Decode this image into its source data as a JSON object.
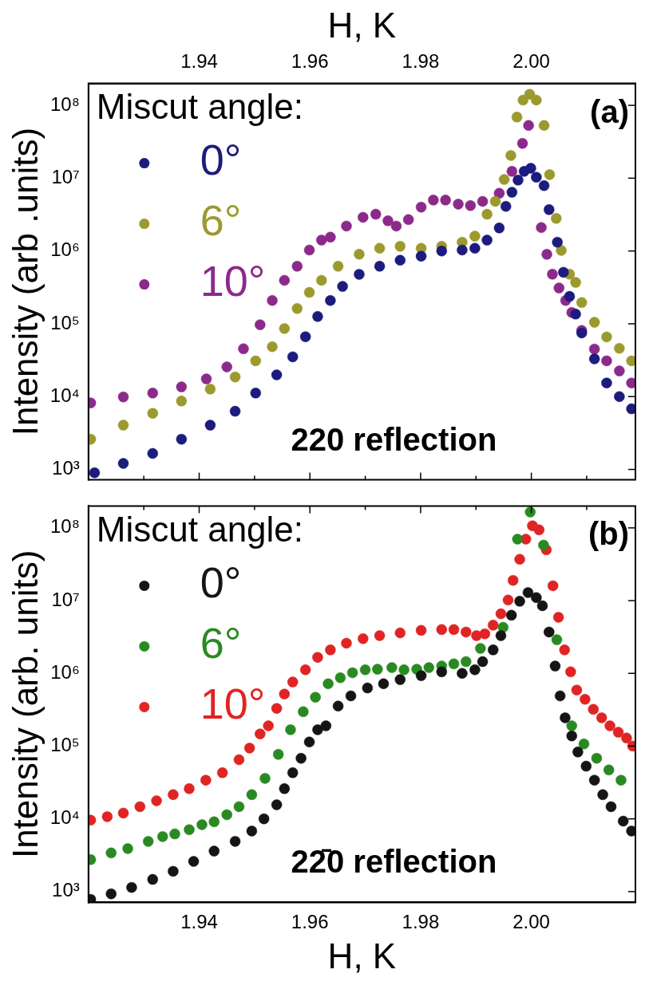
{
  "chart_data": [
    {
      "type": "scatter",
      "xlabel": "H, K",
      "ylabel": "Intensity (arb .units)",
      "legend_title": "Miscut angle:",
      "legend": "top left",
      "marker": "circle",
      "log": "y",
      "xlim": [
        1.92,
        2.0188
      ],
      "xticks": [
        {
          "value": 1.93,
          "label": null
        },
        {
          "value": 1.94,
          "label": "1.94"
        },
        {
          "value": 1.95,
          "label": null
        },
        {
          "value": 1.96,
          "label": "1.96"
        },
        {
          "value": 1.97,
          "label": null
        },
        {
          "value": 1.98,
          "label": "1.98"
        },
        {
          "value": 1.99,
          "label": null
        },
        {
          "value": 2.0,
          "label": "2.00"
        },
        {
          "value": 2.01,
          "label": null
        }
      ],
      "ylim": [
        720,
        200000000
      ],
      "yticks": [
        {
          "value": 1000,
          "label": "10³"
        },
        {
          "value": 10000,
          "label": "10⁴"
        },
        {
          "value": 100000,
          "label": "10⁵"
        },
        {
          "value": 1000000,
          "label": "10⁶"
        },
        {
          "value": 10000000,
          "label": "10⁷"
        },
        {
          "value": 100000000,
          "label": "10⁸"
        }
      ],
      "annotations": [
        "(a)",
        "220 reflection"
      ],
      "series": [
        {
          "name": "0°",
          "color": "#1c1c7e",
          "x": [
            1.9211,
            1.9263,
            1.9316,
            1.9368,
            1.942,
            1.9465,
            1.9502,
            1.954,
            1.9569,
            1.9592,
            1.9614,
            1.9637,
            1.9659,
            1.9689,
            1.9726,
            1.9763,
            1.9801,
            1.9838,
            1.9875,
            1.9898,
            1.992,
            1.9942,
            1.9954,
            1.9965,
            1.9976,
            1.9987,
            1.9999,
            2.0009,
            2.0023,
            2.0032,
            2.0047,
            2.0058,
            2.0069,
            2.008,
            2.0091,
            2.0114,
            2.0136,
            2.0159,
            2.0181
          ],
          "values": [
            900,
            1210,
            1660,
            2600,
            4050,
            6300,
            11200,
            19900,
            35200,
            66500,
            126000,
            209000,
            326000,
            478000,
            617000,
            747000,
            848000,
            1000000,
            1030000,
            1090000,
            1410000,
            2070000,
            4100000,
            6400000,
            9400000,
            12400000,
            13700000,
            10300000,
            7900000,
            3700000,
            1320000,
            510000,
            238000,
            136000,
            75000,
            33000,
            15400,
            10000,
            6800
          ]
        },
        {
          "name": "6°",
          "color": "#9c9a2e",
          "x": [
            1.9204,
            1.9263,
            1.9316,
            1.9368,
            1.942,
            1.9465,
            1.9502,
            1.9532,
            1.9554,
            1.9577,
            1.9599,
            1.9621,
            1.9651,
            1.9689,
            1.9726,
            1.9763,
            1.9801,
            1.9838,
            1.9875,
            1.9898,
            1.992,
            1.9935,
            1.9951,
            1.9963,
            1.9974,
            1.9985,
            1.9997,
            2.0009,
            2.0023,
            2.0033,
            2.0045,
            2.0054,
            2.0069,
            2.008,
            2.0091,
            2.0114,
            2.0136,
            2.0159,
            2.0181
          ],
          "values": [
            2600,
            4050,
            5900,
            8700,
            12700,
            18600,
            31000,
            48400,
            86000,
            162000,
            270000,
            395000,
            617000,
            903000,
            1090000,
            1160000,
            1090000,
            1160000,
            1320000,
            1600000,
            3200000,
            4800000,
            9600000,
            20500000,
            69000000,
            118000000,
            142000000,
            118000000,
            53000000,
            11200000,
            2800000,
            1020000,
            480000,
            370000,
            196000,
            105000,
            66000,
            46000,
            31000
          ]
        },
        {
          "name": "10°",
          "color": "#8c2a8c",
          "x": [
            1.9204,
            1.9263,
            1.9316,
            1.9368,
            1.9413,
            1.945,
            1.948,
            1.951,
            1.9532,
            1.9554,
            1.9577,
            1.9599,
            1.9621,
            1.9637,
            1.9666,
            1.9696,
            1.9719,
            1.9741,
            1.9756,
            1.9778,
            1.9801,
            1.9823,
            1.9845,
            1.9868,
            1.989,
            1.9912,
            1.9942,
            1.9965,
            1.9984,
            1.9995,
            2.0018,
            2.0028,
            2.0038,
            2.005,
            2.0062,
            2.0073,
            2.0091,
            2.0114,
            2.0136,
            2.0159,
            2.0181
          ],
          "values": [
            8200,
            9900,
            11200,
            13600,
            17500,
            25600,
            45400,
            97000,
            209000,
            395000,
            617000,
            1030000,
            1410000,
            1550000,
            2200000,
            2900000,
            3200000,
            2600000,
            2200000,
            2700000,
            4000000,
            5000000,
            5000000,
            4400000,
            4200000,
            4800000,
            6200000,
            12400000,
            30000000,
            53000000,
            2100000,
            900000,
            480000,
            310000,
            209000,
            143000,
            81000,
            45000,
            31000,
            22500,
            15400
          ]
        }
      ]
    },
    {
      "type": "scatter",
      "xlabel": "H, K",
      "ylabel": "Intensity (arb. units)",
      "legend_title": "Miscut angle:",
      "legend": "top left",
      "marker": "circle",
      "log": "y",
      "xlim": [
        1.92,
        2.0188
      ],
      "xticks": [
        {
          "value": 1.93,
          "label": null
        },
        {
          "value": 1.94,
          "label": "1.94"
        },
        {
          "value": 1.95,
          "label": null
        },
        {
          "value": 1.96,
          "label": "1.96"
        },
        {
          "value": 1.97,
          "label": null
        },
        {
          "value": 1.98,
          "label": "1.98"
        },
        {
          "value": 1.99,
          "label": null
        },
        {
          "value": 2.0,
          "label": "2.00"
        },
        {
          "value": 2.01,
          "label": null
        }
      ],
      "ylim": [
        710,
        200000000
      ],
      "yticks": [
        {
          "value": 1000,
          "label": "10³"
        },
        {
          "value": 10000,
          "label": "10⁴"
        },
        {
          "value": 100000,
          "label": "10⁵"
        },
        {
          "value": 1000000,
          "label": "10⁶"
        },
        {
          "value": 10000000,
          "label": "10⁷"
        },
        {
          "value": 100000000,
          "label": "10⁸"
        }
      ],
      "annotations": [
        "(b)",
        "22̄0 reflection"
      ],
      "series": [
        {
          "name": "0°",
          "color": "#151515",
          "x": [
            1.9204,
            1.9241,
            1.9278,
            1.9316,
            1.9353,
            1.939,
            1.9427,
            1.9465,
            1.9495,
            1.9517,
            1.954,
            1.9554,
            1.9569,
            1.9584,
            1.9599,
            1.9614,
            1.9629,
            1.9651,
            1.9674,
            1.9704,
            1.9733,
            1.9763,
            1.9801,
            1.9838,
            1.9875,
            1.9898,
            1.9912,
            1.9931,
            1.9945,
            1.9964,
            1.9979,
            1.9994,
            2.0009,
            2.002,
            2.0032,
            2.0043,
            2.0052,
            2.0061,
            2.0073,
            2.0084,
            2.0099,
            2.0114,
            2.0129,
            2.0144,
            2.0166,
            2.0181
          ],
          "values": [
            780,
            930,
            1140,
            1470,
            1900,
            2600,
            3600,
            4900,
            6800,
            10000,
            15600,
            26000,
            43000,
            68000,
            114000,
            168000,
            190000,
            355000,
            490000,
            630000,
            720000,
            820000,
            930000,
            1050000,
            1000000,
            1120000,
            1450000,
            2100000,
            3300000,
            6300000,
            9800000,
            12900000,
            11000000,
            8500000,
            3700000,
            1260000,
            490000,
            245000,
            138000,
            83000,
            53000,
            34000,
            21500,
            14700,
            9300,
            6800
          ]
        },
        {
          "name": "6°",
          "color": "#2a8a22",
          "x": [
            1.9204,
            1.9241,
            1.9271,
            1.9308,
            1.9334,
            1.9356,
            1.9382,
            1.9405,
            1.9427,
            1.945,
            1.9472,
            1.9495,
            1.9519,
            1.9543,
            1.9565,
            1.9588,
            1.961,
            1.9633,
            1.9655,
            1.9677,
            1.97,
            1.9722,
            1.9748,
            1.977,
            1.9793,
            1.9815,
            1.9838,
            1.986,
            1.9882,
            1.9908,
            1.9949,
            1.9975,
            1.9998,
            2.0022,
            2.0046,
            2.0073,
            2.0095,
            2.0118,
            2.014,
            2.0162
          ],
          "values": [
            2750,
            3400,
            3900,
            4900,
            5700,
            6200,
            7100,
            8300,
            9100,
            11400,
            14700,
            21500,
            36000,
            77000,
            168000,
            297000,
            470000,
            720000,
            870000,
            1020000,
            1120000,
            1140000,
            1200000,
            1120000,
            1140000,
            1200000,
            1260000,
            1350000,
            1450000,
            2200000,
            4300000,
            70000000,
            165000000,
            58000000,
            2900000,
            190000,
            107000,
            68000,
            47000,
            34000
          ]
        },
        {
          "name": "10°",
          "color": "#e02424",
          "x": [
            1.9204,
            1.9234,
            1.9263,
            1.9293,
            1.9323,
            1.9353,
            1.9382,
            1.9412,
            1.9442,
            1.9472,
            1.9491,
            1.951,
            1.9525,
            1.954,
            1.9554,
            1.9569,
            1.9592,
            1.9614,
            1.9637,
            1.9666,
            1.9696,
            1.9726,
            1.9763,
            1.9801,
            1.9838,
            1.986,
            1.9882,
            1.9901,
            1.9916,
            1.9931,
            1.9945,
            1.9958,
            1.9967,
            1.9979,
            1.999,
            2.0002,
            2.0014,
            2.0027,
            2.0039,
            2.0049,
            2.006,
            2.0071,
            2.0082,
            2.0097,
            2.0112,
            2.0127,
            2.0142,
            2.0157,
            2.0172,
            2.0183
          ],
          "values": [
            9600,
            10700,
            12000,
            14700,
            17700,
            21500,
            26000,
            34000,
            43000,
            65000,
            94000,
            147000,
            190000,
            330000,
            520000,
            760000,
            1120000,
            1660000,
            2100000,
            2600000,
            3000000,
            3300000,
            3600000,
            3900000,
            4000000,
            4000000,
            3700000,
            3300000,
            3500000,
            4600000,
            6600000,
            10200000,
            19000000,
            37000000,
            70000000,
            107000000,
            94000000,
            50000000,
            16000000,
            5900000,
            2100000,
            1050000,
            590000,
            440000,
            320000,
            245000,
            190000,
            155000,
            129000,
            100000
          ]
        }
      ]
    }
  ]
}
